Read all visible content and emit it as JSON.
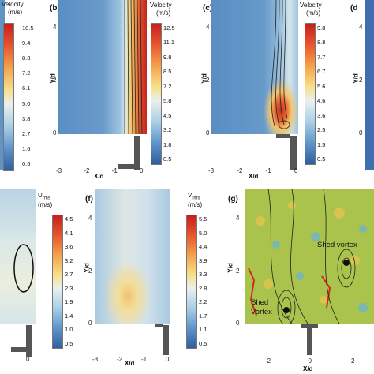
{
  "panel_a": {
    "colorbar_title": "Velocity",
    "colorbar_unit": "(m/s)",
    "colorbar_ticks": [
      "10.5",
      "9.4",
      "8.3",
      "7.2",
      "6.1",
      "5.0",
      "3.8",
      "2.7",
      "1.6",
      "0.5"
    ],
    "x_ticks": []
  },
  "panel_b": {
    "letter": "(b)",
    "colorbar_title": "Velocity",
    "colorbar_unit": "(m/s)",
    "colorbar_ticks": [
      "12.5",
      "11.1",
      "9.8",
      "8.5",
      "7.2",
      "5.8",
      "4.5",
      "3.2",
      "1.8",
      "0.5"
    ],
    "y_label": "Y/d",
    "x_label": "X/d",
    "y_ticks": [
      "4",
      "2",
      "0"
    ],
    "x_ticks": [
      "-3",
      "-2",
      "-1",
      "0"
    ]
  },
  "panel_c": {
    "letter": "(c)",
    "colorbar_title": "Velocity",
    "colorbar_unit": "(m/s)",
    "colorbar_ticks": [
      "9.8",
      "8.8",
      "7.7",
      "6.7",
      "5.6",
      "4.6",
      "3.6",
      "2.5",
      "1.5",
      "0.5"
    ],
    "y_label": "Y/d",
    "x_label": "X/d",
    "y_ticks": [
      "4",
      "2",
      "0"
    ],
    "x_ticks": [
      "-3",
      "-2",
      "-1",
      "0"
    ]
  },
  "panel_d": {
    "letter": "(d",
    "y_label": "Y/d",
    "y_ticks": [
      "4",
      "2",
      "0"
    ]
  },
  "panel_e": {
    "colorbar_title_main": "U",
    "colorbar_title_sub": "rms",
    "colorbar_unit": "(m/s)",
    "colorbar_ticks": [
      "4.5",
      "4.1",
      "3.6",
      "3.2",
      "2.7",
      "2.3",
      "1.9",
      "1.4",
      "1.0",
      "0.5"
    ],
    "x_ticks": [
      "0"
    ]
  },
  "panel_f": {
    "letter": "(f)",
    "colorbar_title_main": "V",
    "colorbar_title_sub": "rms",
    "colorbar_unit": "(m/s)",
    "colorbar_ticks": [
      "5.5",
      "5.0",
      "4.4",
      "3.9",
      "3.3",
      "2.8",
      "2.2",
      "1.7",
      "1.1",
      "0.5"
    ],
    "y_label": "Y/d",
    "x_label": "X/d",
    "y_ticks": [
      "4",
      "2",
      "0"
    ],
    "x_ticks": [
      "-3",
      "-2",
      "-1",
      "0"
    ]
  },
  "panel_g": {
    "letter": "(g)",
    "y_label": "Y/d",
    "x_label": "X/d",
    "y_ticks": [
      "4",
      "2",
      "0"
    ],
    "x_ticks": [
      "-2",
      "0",
      "2"
    ],
    "annotation_upper": "Shed vortex",
    "annotation_lower_1": "Shed",
    "annotation_lower_2": "Vortex"
  },
  "colors": {
    "field_blue": "#5b8fc4",
    "field_light": "#cfe3ee",
    "hot_red": "#d22a1f",
    "vorticity_green": "#a8c24a",
    "wall_gray": "#555555"
  }
}
